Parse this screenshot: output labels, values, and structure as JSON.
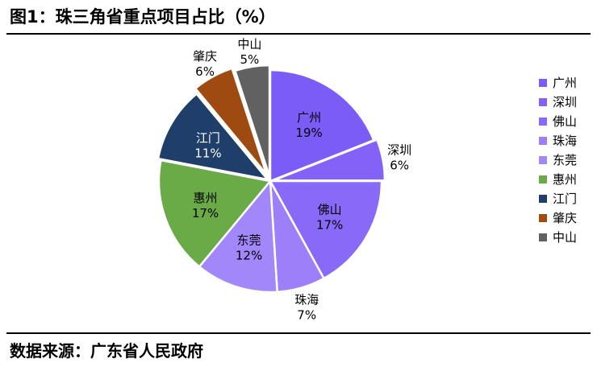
{
  "title": "图1：珠三角省重点项目占比（%）",
  "source": "数据来源：广东省人民政府",
  "chart_data": {
    "type": "pie",
    "unit": "%",
    "labels": [
      "广州",
      "深圳",
      "佛山",
      "珠海",
      "东莞",
      "惠州",
      "江门",
      "肇庆",
      "中山"
    ],
    "values": [
      19,
      6,
      17,
      7,
      12,
      17,
      11,
      6,
      5
    ],
    "colors": [
      "#7b5cf7",
      "#8462f8",
      "#8869f8",
      "#9c7ff9",
      "#a287fa",
      "#6aab48",
      "#1f3e6a",
      "#9e4a10",
      "#616161"
    ],
    "legend": "right",
    "start": "12 o'clock, clockwise"
  }
}
